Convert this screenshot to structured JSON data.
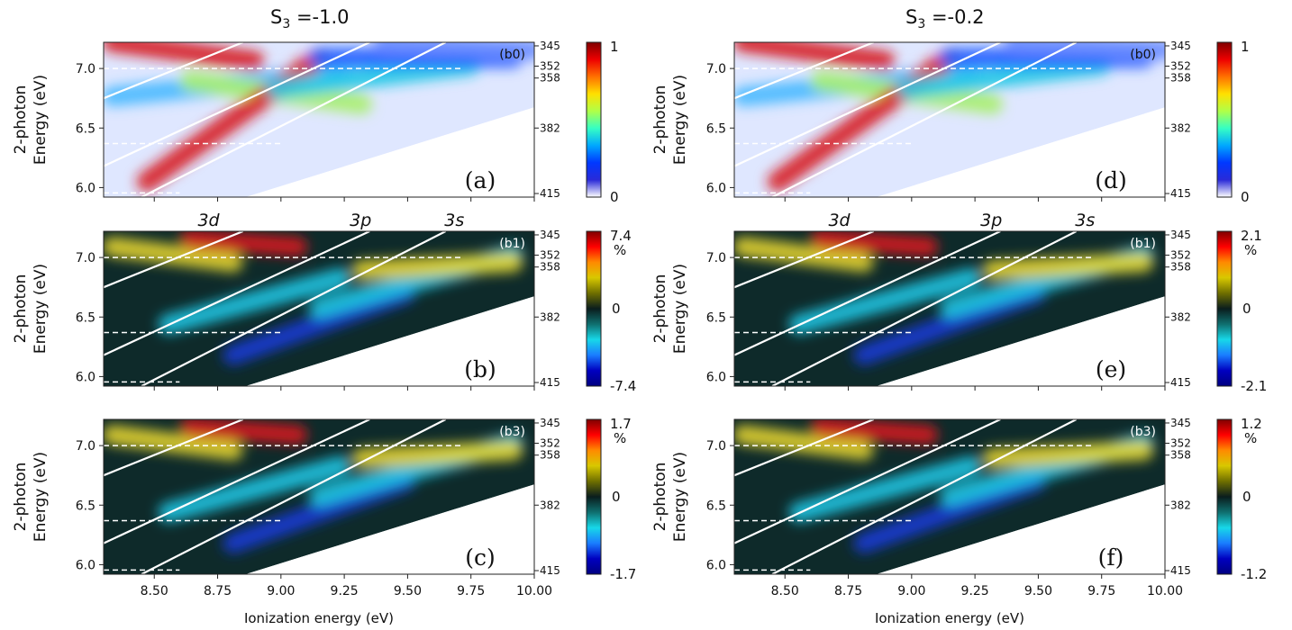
{
  "figure": {
    "columns": [
      {
        "title_base": "S",
        "title_sub": "3",
        "title_rest": " =-1.0"
      },
      {
        "title_base": "S",
        "title_sub": "3",
        "title_rest": " =-0.2"
      }
    ],
    "ylabel_line1": "2-photon",
    "ylabel_line2": "Energy (eV)",
    "xlabel": "Ionization energy (eV)",
    "x_ticks": [
      "8.50",
      "8.75",
      "9.00",
      "9.25",
      "9.50",
      "9.75",
      "10.00"
    ],
    "y_ticks": [
      "6.0",
      "6.5",
      "7.0"
    ],
    "right_ticks": [
      "345",
      "352",
      "358",
      "382",
      "415"
    ],
    "orbital_labels": [
      "3d",
      "3p",
      "3s"
    ],
    "colors": {
      "warm": "#d7191c",
      "yellow": "#e6d530",
      "cyan": "#21c8e6",
      "blue": "#1a3bd6",
      "dark": "#0e2a2a"
    }
  },
  "chart_data": [
    {
      "panel": "a",
      "tag": "(b0)",
      "label": "(a)",
      "column": "S3 =-1.0",
      "type": "heatmap",
      "colorbar": {
        "max": "1",
        "min": "0",
        "unit": "",
        "cmap": "jet"
      },
      "xlim": [
        8.3,
        10.0
      ],
      "ylim": [
        5.92,
        7.22
      ]
    },
    {
      "panel": "b",
      "tag": "(b1)",
      "label": "(b)",
      "column": "S3 =-1.0",
      "type": "heatmap",
      "colorbar": {
        "max": "7.4",
        "min": "-7.4",
        "unit": "%",
        "cmap": "diverging"
      },
      "xlim": [
        8.3,
        10.0
      ],
      "ylim": [
        5.92,
        7.22
      ]
    },
    {
      "panel": "c",
      "tag": "(b3)",
      "label": "(c)",
      "column": "S3 =-1.0",
      "type": "heatmap",
      "colorbar": {
        "max": "1.7",
        "min": "-1.7",
        "unit": "%",
        "cmap": "diverging"
      },
      "xlim": [
        8.3,
        10.0
      ],
      "ylim": [
        5.92,
        7.22
      ]
    },
    {
      "panel": "d",
      "tag": "(b0)",
      "label": "(d)",
      "column": "S3 =-0.2",
      "type": "heatmap",
      "colorbar": {
        "max": "1",
        "min": "0",
        "unit": "",
        "cmap": "jet"
      },
      "xlim": [
        8.3,
        10.0
      ],
      "ylim": [
        5.92,
        7.22
      ]
    },
    {
      "panel": "e",
      "tag": "(b1)",
      "label": "(e)",
      "column": "S3 =-0.2",
      "type": "heatmap",
      "colorbar": {
        "max": "2.1",
        "min": "-2.1",
        "unit": "%",
        "cmap": "diverging"
      },
      "xlim": [
        8.3,
        10.0
      ],
      "ylim": [
        5.92,
        7.22
      ]
    },
    {
      "panel": "f",
      "tag": "(b3)",
      "label": "(f)",
      "column": "S3 =-0.2",
      "type": "heatmap",
      "colorbar": {
        "max": "1.2",
        "min": "-1.2",
        "unit": "%",
        "cmap": "diverging"
      },
      "xlim": [
        8.3,
        10.0
      ],
      "ylim": [
        5.92,
        7.22
      ]
    }
  ]
}
